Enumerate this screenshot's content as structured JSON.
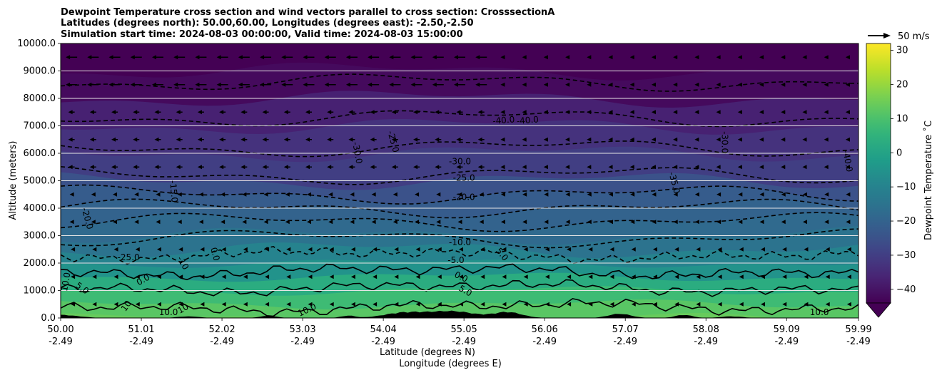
{
  "chart_data": {
    "type": "contour",
    "title_lines": [
      "Dewpoint Temperature cross section and wind vectors parallel to cross section: CrosssectionA",
      "Latitudes (degrees north): 50.00,60.00, Longitudes (degrees east): -2.50,-2.50",
      "Simulation start time: 2024-08-03 00:00:00, Valid time: 2024-08-03 15:00:00"
    ],
    "ylabel": "Altitude (meters)",
    "xlabel_lines": [
      "Latitude (degrees N)",
      "Longitude (degrees E)"
    ],
    "y_ticks": [
      "0.0",
      "1000.0",
      "2000.0",
      "3000.0",
      "4000.0",
      "5000.0",
      "6000.0",
      "7000.0",
      "8000.0",
      "9000.0",
      "10000.0"
    ],
    "ylim": [
      0,
      10000
    ],
    "x_ticks": [
      {
        "lat": "50.00",
        "lon": "-2.49"
      },
      {
        "lat": "51.01",
        "lon": "-2.49"
      },
      {
        "lat": "52.02",
        "lon": "-2.49"
      },
      {
        "lat": "53.03",
        "lon": "-2.49"
      },
      {
        "lat": "54.04",
        "lon": "-2.49"
      },
      {
        "lat": "55.05",
        "lon": "-2.49"
      },
      {
        "lat": "56.06",
        "lon": "-2.49"
      },
      {
        "lat": "57.07",
        "lon": "-2.49"
      },
      {
        "lat": "58.08",
        "lon": "-2.49"
      },
      {
        "lat": "59.09",
        "lon": "-2.49"
      },
      {
        "lat": "59.99",
        "lon": "-2.49"
      }
    ],
    "xlim": [
      50.0,
      59.99
    ],
    "colorbar": {
      "label": "Dewpoint Temperature ˚C",
      "ticks": [
        "−40",
        "−30",
        "−20",
        "−10",
        "0",
        "10",
        "20",
        "30"
      ],
      "range": [
        -44,
        32
      ],
      "extend": "min"
    },
    "quiver_key_label": "50 m/s",
    "grid": "horizontal",
    "field_bands": [
      {
        "alt": 0,
        "value": 14
      },
      {
        "alt": 500,
        "value": 12
      },
      {
        "alt": 1000,
        "value": 8
      },
      {
        "alt": 1500,
        "value": 3
      },
      {
        "alt": 2000,
        "value": -5
      },
      {
        "alt": 2500,
        "value": -10
      },
      {
        "alt": 3000,
        "value": -15
      },
      {
        "alt": 3500,
        "value": -18
      },
      {
        "alt": 4000,
        "value": -20
      },
      {
        "alt": 4500,
        "value": -22
      },
      {
        "alt": 5000,
        "value": -25
      },
      {
        "alt": 6000,
        "value": -30
      },
      {
        "alt": 7000,
        "value": -33
      },
      {
        "alt": 8000,
        "value": -37
      },
      {
        "alt": 9000,
        "value": -42
      },
      {
        "alt": 10000,
        "value": -45
      }
    ],
    "contour_labels": [
      {
        "text": "-40.0",
        "lat": 55.55,
        "alt": 7100,
        "rot": -5
      },
      {
        "text": "-40.0",
        "lat": 55.85,
        "alt": 7100,
        "rot": -5
      },
      {
        "text": "-30.0",
        "lat": 53.68,
        "alt": 6000,
        "rot": 80
      },
      {
        "text": "-25.0",
        "lat": 54.13,
        "alt": 6400,
        "rot": 75
      },
      {
        "text": "-30.0",
        "lat": 58.28,
        "alt": 6400,
        "rot": 90
      },
      {
        "text": "-40.0",
        "lat": 59.82,
        "alt": 5700,
        "rot": 80
      },
      {
        "text": "-30.0",
        "lat": 55.0,
        "alt": 5600,
        "rot": 0
      },
      {
        "text": "-25.0",
        "lat": 55.05,
        "alt": 5000,
        "rot": 0
      },
      {
        "text": "-20.0",
        "lat": 55.05,
        "alt": 4300,
        "rot": 0
      },
      {
        "text": "-35.0",
        "lat": 57.65,
        "alt": 4900,
        "rot": 75
      },
      {
        "text": "-15.0",
        "lat": 51.38,
        "alt": 4600,
        "rot": 85
      },
      {
        "text": "-20.0",
        "lat": 50.3,
        "alt": 3600,
        "rot": 75
      },
      {
        "text": "-10.0",
        "lat": 55.0,
        "alt": 2650,
        "rot": 0
      },
      {
        "text": "-5.0",
        "lat": 54.95,
        "alt": 2000,
        "rot": 0
      },
      {
        "text": "-25.0",
        "lat": 50.85,
        "alt": 2100,
        "rot": 0
      },
      {
        "text": "0.0",
        "lat": 51.9,
        "alt": 2300,
        "rot": 75
      },
      {
        "text": "-10",
        "lat": 51.5,
        "alt": 1950,
        "rot": 60
      },
      {
        "text": "0.0",
        "lat": 51.05,
        "alt": 1300,
        "rot": -30
      },
      {
        "text": "0.0",
        "lat": 55.0,
        "alt": 1400,
        "rot": 25
      },
      {
        "text": "5.0",
        "lat": 55.05,
        "alt": 900,
        "rot": 30
      },
      {
        "text": "5.0",
        "lat": 55.5,
        "alt": 2250,
        "rot": 50
      },
      {
        "text": "10.0",
        "lat": 50.1,
        "alt": 1300,
        "rot": -80
      },
      {
        "text": "5.0",
        "lat": 50.25,
        "alt": 1000,
        "rot": 35
      },
      {
        "text": "10",
        "lat": 50.85,
        "alt": 380,
        "rot": -55
      },
      {
        "text": "10.0",
        "lat": 51.35,
        "alt": 100,
        "rot": 0
      },
      {
        "text": "10",
        "lat": 51.55,
        "alt": 250,
        "rot": -30
      },
      {
        "text": "10.0",
        "lat": 53.1,
        "alt": 200,
        "rot": -25
      },
      {
        "text": "10.0",
        "lat": 59.5,
        "alt": 100,
        "rot": 0
      }
    ]
  }
}
